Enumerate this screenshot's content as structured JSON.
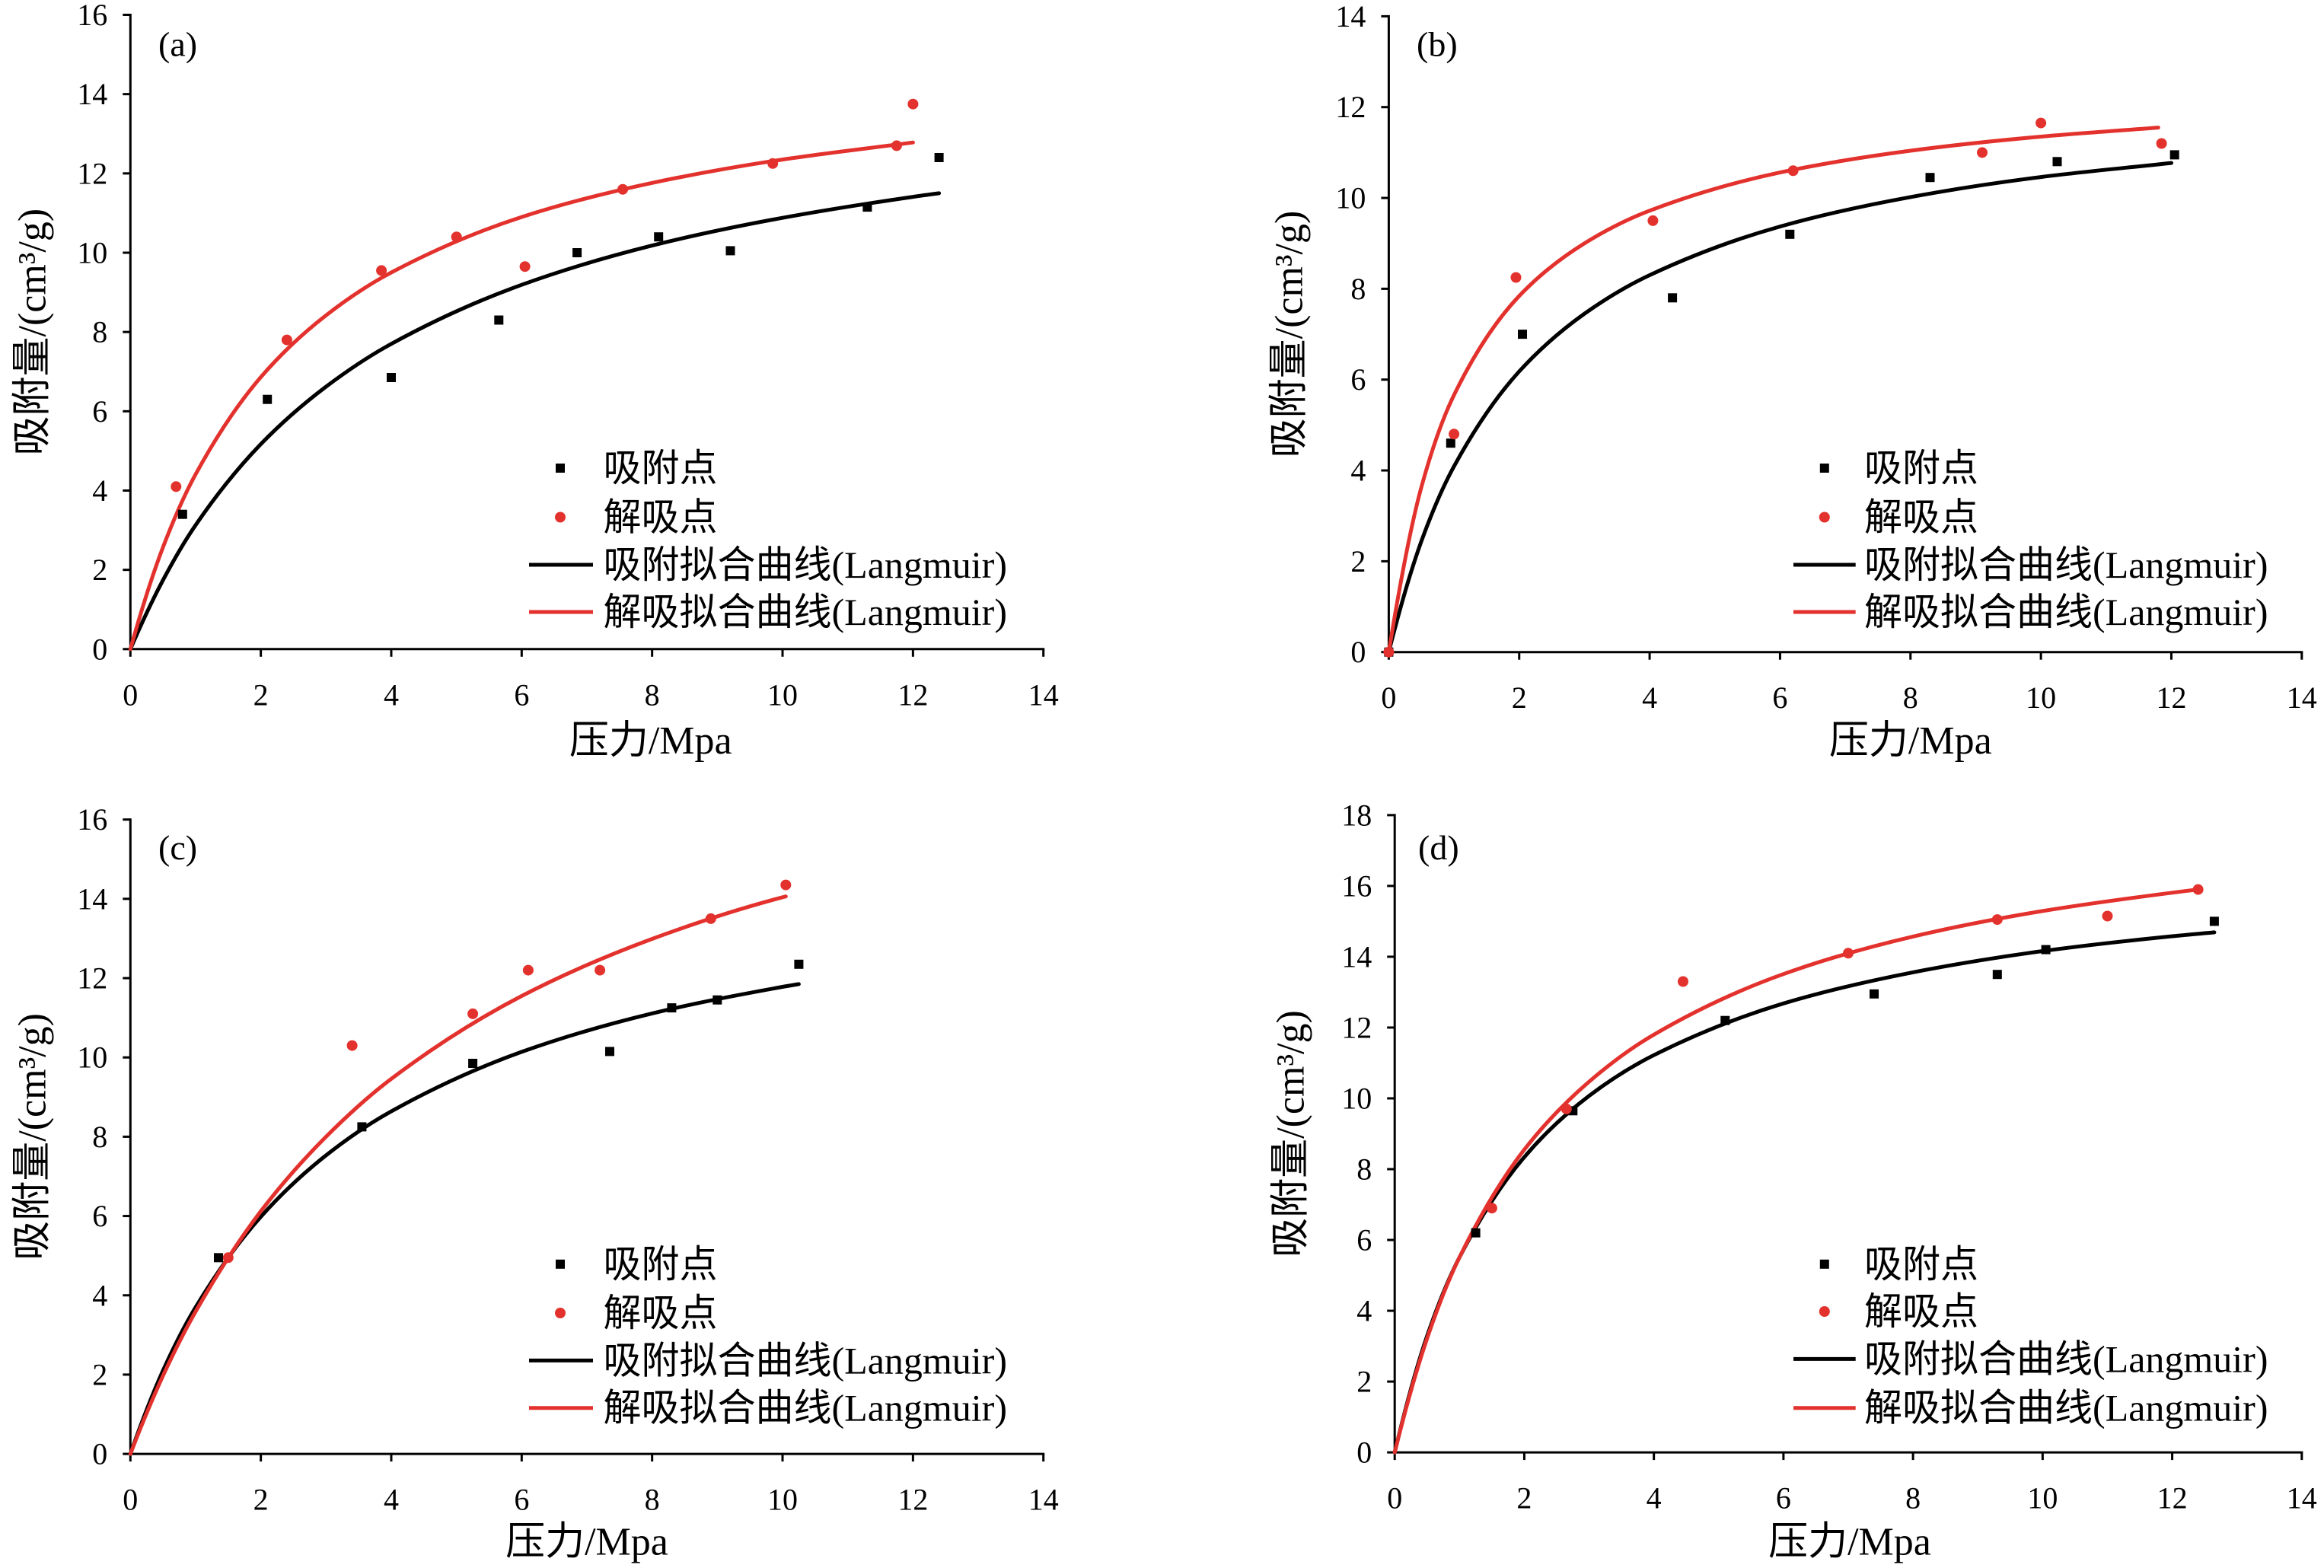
{
  "chart_data": [
    {
      "type": "scatter",
      "panel_label": "(a)",
      "xlabel": "压力/Mpa",
      "ylabel": "吸附量/(cm³/g)",
      "xlim": [
        0,
        14
      ],
      "ylim": [
        0,
        16
      ],
      "xticks": [
        0,
        2,
        4,
        6,
        8,
        10,
        12,
        14
      ],
      "yticks": [
        0,
        2,
        4,
        6,
        8,
        10,
        12,
        14,
        16
      ],
      "grid": false,
      "legend_position": "lower-right",
      "series": [
        {
          "name": "吸附点",
          "kind": "points",
          "marker": "square",
          "color": "#000000",
          "points": [
            [
              0.8,
              3.4
            ],
            [
              2.1,
              6.3
            ],
            [
              4.0,
              6.85
            ],
            [
              5.65,
              8.3
            ],
            [
              6.85,
              10.0
            ],
            [
              8.1,
              10.4
            ],
            [
              9.2,
              10.05
            ],
            [
              11.3,
              11.15
            ],
            [
              12.4,
              12.4
            ]
          ]
        },
        {
          "name": "解吸点",
          "kind": "points",
          "marker": "circle",
          "color": "#e3322d",
          "points": [
            [
              0.7,
              4.1
            ],
            [
              2.4,
              7.8
            ],
            [
              3.85,
              9.55
            ],
            [
              5.0,
              10.4
            ],
            [
              6.05,
              9.65
            ],
            [
              7.55,
              11.6
            ],
            [
              9.85,
              12.25
            ],
            [
              11.75,
              12.7
            ],
            [
              12.0,
              13.75
            ]
          ]
        },
        {
          "name": "吸附拟合曲线(Langmuir)",
          "kind": "line",
          "color": "#000000",
          "points": [
            [
              0,
              0
            ],
            [
              0.5,
              1.74
            ],
            [
              1,
              3.13
            ],
            [
              2,
              5.17
            ],
            [
              3,
              6.62
            ],
            [
              4,
              7.7
            ],
            [
              6,
              9.19
            ],
            [
              8,
              10.18
            ],
            [
              10,
              10.88
            ],
            [
              12,
              11.41
            ],
            [
              12.4,
              11.5
            ]
          ]
        },
        {
          "name": "解吸拟合曲线(Langmuir)",
          "kind": "line",
          "color": "#e3322d",
          "points": [
            [
              0,
              0
            ],
            [
              0.5,
              2.57
            ],
            [
              1,
              4.41
            ],
            [
              2,
              6.86
            ],
            [
              3,
              8.42
            ],
            [
              4,
              9.5
            ],
            [
              6,
              10.9
            ],
            [
              8,
              11.76
            ],
            [
              10,
              12.35
            ],
            [
              12,
              12.78
            ]
          ]
        }
      ]
    },
    {
      "type": "scatter",
      "panel_label": "(b)",
      "xlabel": "压力/Mpa",
      "ylabel": "吸附量/(cm³/g)",
      "xlim": [
        0,
        14
      ],
      "ylim": [
        0,
        14
      ],
      "xticks": [
        0,
        2,
        4,
        6,
        8,
        10,
        12,
        14
      ],
      "yticks": [
        0,
        2,
        4,
        6,
        8,
        10,
        12,
        14
      ],
      "grid": false,
      "legend_position": "lower-right",
      "series": [
        {
          "name": "吸附点",
          "kind": "points",
          "marker": "square",
          "color": "#000000",
          "points": [
            [
              0,
              0
            ],
            [
              0.95,
              4.6
            ],
            [
              2.05,
              7.0
            ],
            [
              4.35,
              7.8
            ],
            [
              6.15,
              9.2
            ],
            [
              8.3,
              10.45
            ],
            [
              10.25,
              10.8
            ],
            [
              12.05,
              10.95
            ]
          ]
        },
        {
          "name": "解吸点",
          "kind": "points",
          "marker": "circle",
          "color": "#e3322d",
          "points": [
            [
              0,
              0
            ],
            [
              1.0,
              4.8
            ],
            [
              1.95,
              8.25
            ],
            [
              4.05,
              9.5
            ],
            [
              6.2,
              10.6
            ],
            [
              9.1,
              11.0
            ],
            [
              10.0,
              11.65
            ],
            [
              11.85,
              11.2
            ]
          ]
        },
        {
          "name": "吸附拟合曲线(Langmuir)",
          "kind": "line",
          "color": "#000000",
          "points": [
            [
              0,
              0
            ],
            [
              0.5,
              2.44
            ],
            [
              1,
              4.09
            ],
            [
              2,
              6.18
            ],
            [
              3,
              7.45
            ],
            [
              4,
              8.3
            ],
            [
              6,
              9.37
            ],
            [
              8,
              10.02
            ],
            [
              10,
              10.46
            ],
            [
              12,
              10.77
            ]
          ]
        },
        {
          "name": "解吸拟合曲线(Langmuir)",
          "kind": "line",
          "color": "#e3322d",
          "points": [
            [
              0,
              0
            ],
            [
              0.5,
              3.63
            ],
            [
              1,
              5.66
            ],
            [
              2,
              7.84
            ],
            [
              3,
              9.0
            ],
            [
              4,
              9.72
            ],
            [
              6,
              10.56
            ],
            [
              8,
              11.04
            ],
            [
              10,
              11.35
            ],
            [
              11.8,
              11.55
            ]
          ]
        }
      ]
    },
    {
      "type": "scatter",
      "panel_label": "(c)",
      "xlabel": "压力/Mpa",
      "ylabel": "吸附量/(cm³/g)",
      "xlim": [
        0,
        14
      ],
      "ylim": [
        0,
        16
      ],
      "xticks": [
        0,
        2,
        4,
        6,
        8,
        10,
        12,
        14
      ],
      "yticks": [
        0,
        2,
        4,
        6,
        8,
        10,
        12,
        14,
        16
      ],
      "grid": false,
      "legend_position": "lower-right",
      "series": [
        {
          "name": "吸附点",
          "kind": "points",
          "marker": "square",
          "color": "#000000",
          "points": [
            [
              1.35,
              4.95
            ],
            [
              3.55,
              8.25
            ],
            [
              5.25,
              9.85
            ],
            [
              7.35,
              10.15
            ],
            [
              8.3,
              11.25
            ],
            [
              9.0,
              11.45
            ],
            [
              10.25,
              12.35
            ]
          ]
        },
        {
          "name": "解吸点",
          "kind": "points",
          "marker": "circle",
          "color": "#e3322d",
          "points": [
            [
              1.5,
              4.95
            ],
            [
              3.4,
              10.3
            ],
            [
              5.25,
              11.1
            ],
            [
              6.1,
              12.2
            ],
            [
              7.2,
              12.2
            ],
            [
              8.9,
              13.5
            ],
            [
              10.05,
              14.35
            ]
          ]
        },
        {
          "name": "吸附拟合曲线(Langmuir)",
          "kind": "line",
          "color": "#000000",
          "points": [
            [
              0,
              0
            ],
            [
              0.5,
              2.1
            ],
            [
              1,
              3.7
            ],
            [
              2,
              5.98
            ],
            [
              3,
              7.53
            ],
            [
              4,
              8.64
            ],
            [
              6,
              10.14
            ],
            [
              8,
              11.11
            ],
            [
              10,
              11.78
            ],
            [
              10.25,
              11.85
            ]
          ]
        },
        {
          "name": "解吸拟合曲线(Langmuir)",
          "kind": "line",
          "color": "#e3322d",
          "points": [
            [
              0,
              0
            ],
            [
              0.5,
              1.97
            ],
            [
              1,
              3.59
            ],
            [
              2,
              6.12
            ],
            [
              3,
              8.0
            ],
            [
              4,
              9.46
            ],
            [
              6,
              11.55
            ],
            [
              8,
              12.99
            ],
            [
              10,
              14.04
            ],
            [
              10.05,
              14.06
            ]
          ]
        }
      ]
    },
    {
      "type": "scatter",
      "panel_label": "(d)",
      "xlabel": "压力/Mpa",
      "ylabel": "吸附量/(cm³/g)",
      "xlim": [
        0,
        14
      ],
      "ylim": [
        0,
        18
      ],
      "xticks": [
        0,
        2,
        4,
        6,
        8,
        10,
        12,
        14
      ],
      "yticks": [
        0,
        2,
        4,
        6,
        8,
        10,
        12,
        14,
        16,
        18
      ],
      "grid": false,
      "legend_position": "lower-right",
      "series": [
        {
          "name": "吸附点",
          "kind": "points",
          "marker": "square",
          "color": "#000000",
          "points": [
            [
              1.25,
              6.2
            ],
            [
              2.75,
              9.65
            ],
            [
              5.1,
              12.2
            ],
            [
              7.4,
              12.95
            ],
            [
              9.3,
              13.5
            ],
            [
              10.05,
              14.2
            ],
            [
              12.65,
              15.0
            ]
          ]
        },
        {
          "name": "解吸点",
          "kind": "points",
          "marker": "circle",
          "color": "#e3322d",
          "points": [
            [
              1.5,
              6.9
            ],
            [
              2.65,
              9.7
            ],
            [
              4.45,
              13.3
            ],
            [
              7.0,
              14.1
            ],
            [
              9.3,
              15.05
            ],
            [
              11.0,
              15.15
            ],
            [
              12.4,
              15.9
            ]
          ]
        },
        {
          "name": "吸附拟合曲线(Langmuir)",
          "kind": "line",
          "color": "#000000",
          "points": [
            [
              0,
              0
            ],
            [
              0.5,
              3.29
            ],
            [
              1,
              5.51
            ],
            [
              2,
              8.34
            ],
            [
              3,
              10.07
            ],
            [
              4,
              11.22
            ],
            [
              6,
              12.68
            ],
            [
              8,
              13.56
            ],
            [
              10,
              14.16
            ],
            [
              12,
              14.58
            ],
            [
              12.65,
              14.69
            ]
          ]
        },
        {
          "name": "解吸拟合曲线(Langmuir)",
          "kind": "line",
          "color": "#e3322d",
          "points": [
            [
              0,
              0
            ],
            [
              0.5,
              3.22
            ],
            [
              1,
              5.51
            ],
            [
              2,
              8.55
            ],
            [
              3,
              10.47
            ],
            [
              4,
              11.8
            ],
            [
              6,
              13.51
            ],
            [
              8,
              14.57
            ],
            [
              10,
              15.29
            ],
            [
              12,
              15.81
            ],
            [
              12.4,
              15.9
            ]
          ]
        }
      ]
    }
  ]
}
